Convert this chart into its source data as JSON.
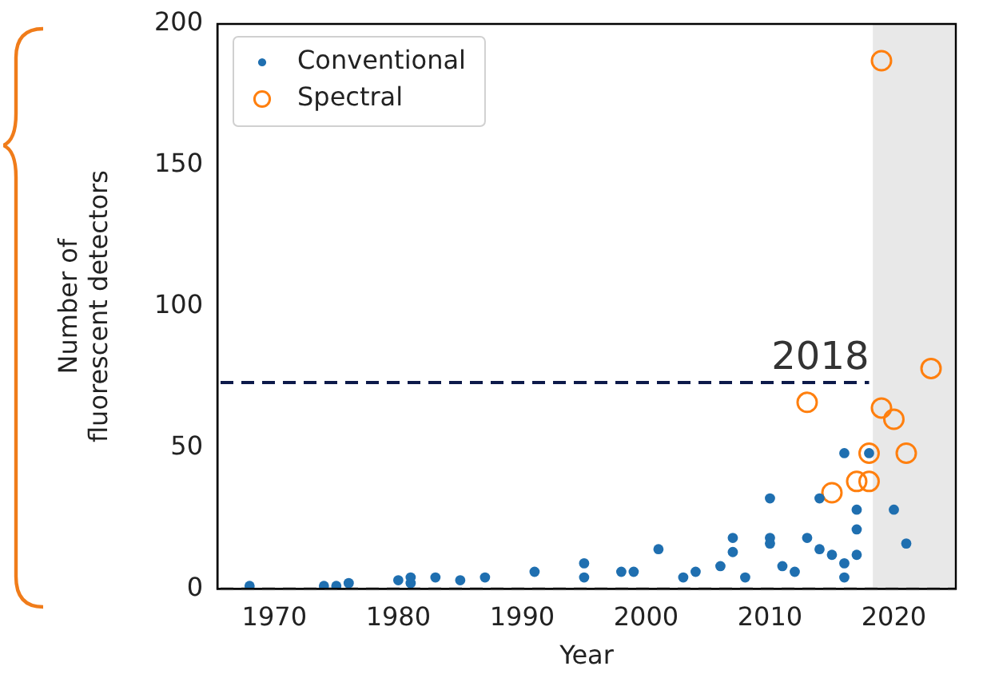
{
  "chart_data": {
    "type": "scatter",
    "xlabel": "Year",
    "ylabel": "Number of\nfluorescent detectors",
    "xlim": [
      1965.4,
      2025
    ],
    "xticks": [
      1970,
      1980,
      1990,
      2000,
      2010,
      2020
    ],
    "ylim": [
      0,
      200
    ],
    "yticks": [
      0,
      50,
      100,
      150,
      200
    ],
    "grid": false,
    "legend": "top left",
    "series": [
      {
        "name": "Conventional",
        "color": "#1f6fb0",
        "marker": "circle",
        "x": [
          1968,
          1974,
          1975,
          1976,
          1980,
          1981,
          1981,
          1983,
          1985,
          1987,
          1991,
          1995,
          1995,
          1998,
          1999,
          2001,
          2003,
          2004,
          2006,
          2007,
          2007,
          2008,
          2010,
          2010,
          2010,
          2011,
          2012,
          2013,
          2014,
          2014,
          2015,
          2016,
          2016,
          2016,
          2017,
          2017,
          2017,
          2018,
          2020,
          2021
        ],
        "values": [
          1,
          1,
          1,
          2,
          3,
          2,
          4,
          4,
          3,
          4,
          6,
          9,
          4,
          6,
          6,
          14,
          4,
          6,
          8,
          18,
          13,
          4,
          32,
          18,
          16,
          8,
          6,
          18,
          14,
          32,
          12,
          9,
          4,
          48,
          12,
          21,
          28,
          48,
          28,
          16
        ]
      },
      {
        "name": "Spectral",
        "color": "#ff7f0e",
        "marker": "circle-open",
        "x": [
          2013,
          2015,
          2017,
          2018,
          2018,
          2019,
          2019,
          2020,
          2021,
          2023
        ],
        "values": [
          66,
          34,
          38,
          38,
          48,
          64,
          187,
          60,
          48,
          78
        ]
      }
    ],
    "annotations": [
      {
        "text": "2018",
        "x": 2018,
        "y": 73
      }
    ],
    "ref_lines": [
      {
        "axis": "y",
        "value": 73,
        "color": "#0d1a4a",
        "line_style": "dashed"
      },
      {
        "axis": "y",
        "value": 0,
        "color": "#b8b8b8",
        "line_style": "dashed"
      }
    ],
    "bands": [
      {
        "axis": "x",
        "from": 2018.3,
        "to": 2025,
        "color": "#e8e8e8"
      }
    ]
  }
}
